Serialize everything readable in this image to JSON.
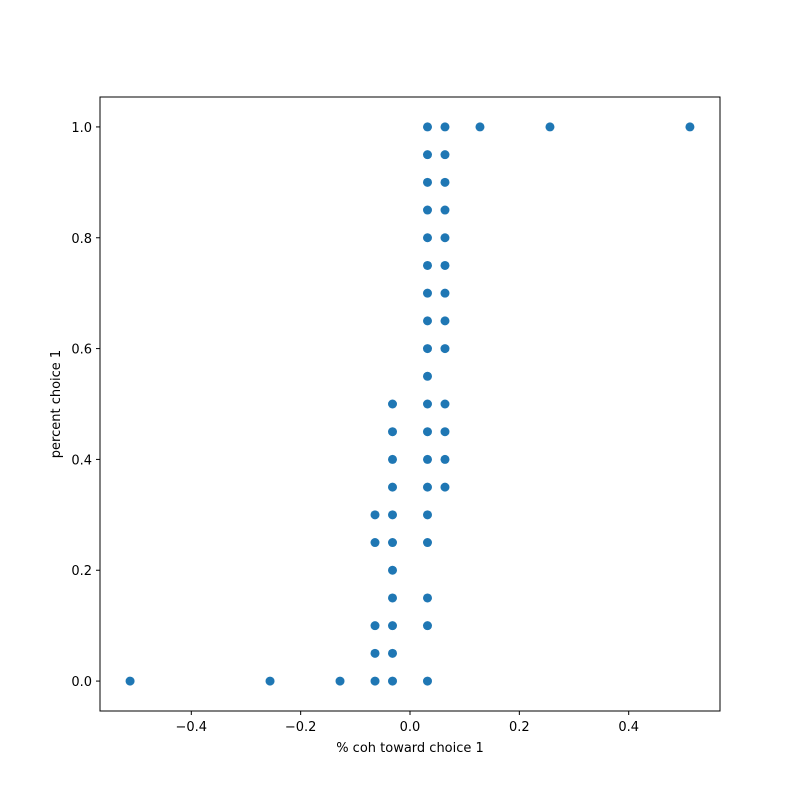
{
  "chart_data": {
    "type": "scatter",
    "xlabel": "% coh toward choice 1",
    "ylabel": "percent choice 1",
    "color": "#1f77b4",
    "x": [
      -0.512,
      -0.256,
      -0.128,
      -0.064,
      -0.064,
      -0.064,
      -0.064,
      -0.064,
      -0.032,
      -0.032,
      -0.032,
      -0.032,
      -0.032,
      -0.032,
      -0.032,
      -0.032,
      -0.032,
      -0.032,
      -0.032,
      0.032,
      0.032,
      0.032,
      0.032,
      0.032,
      0.032,
      0.032,
      0.032,
      0.032,
      0.032,
      0.032,
      0.032,
      0.032,
      0.032,
      0.032,
      0.032,
      0.032,
      0.032,
      0.032,
      0.064,
      0.064,
      0.064,
      0.064,
      0.064,
      0.064,
      0.064,
      0.064,
      0.064,
      0.064,
      0.064,
      0.064,
      0.064,
      0.128,
      0.256,
      0.512
    ],
    "y": [
      0,
      0,
      0,
      0,
      0.05,
      0.1,
      0.25,
      0.3,
      0,
      0.05,
      0.1,
      0.15,
      0.2,
      0.25,
      0.3,
      0.35,
      0.4,
      0.45,
      0.5,
      0,
      0.1,
      0.15,
      0.25,
      0.3,
      0.35,
      0.4,
      0.45,
      0.5,
      0.55,
      0.6,
      0.65,
      0.7,
      0.75,
      0.8,
      0.85,
      0.9,
      0.95,
      1,
      0.35,
      0.4,
      0.45,
      0.5,
      0.6,
      0.65,
      0.7,
      0.75,
      0.8,
      0.85,
      0.9,
      0.95,
      1,
      1,
      1,
      1
    ],
    "xlim": [
      -0.567,
      0.567
    ],
    "ylim": [
      -0.054,
      1.054
    ],
    "xticks": [
      {
        "value": -0.4,
        "label": "−0.4"
      },
      {
        "value": -0.2,
        "label": "−0.2"
      },
      {
        "value": 0,
        "label": "0.0"
      },
      0.2,
      0.4
    ],
    "yticks": [
      {
        "value": 0,
        "label": "0.0"
      },
      0.2,
      0.4,
      0.6,
      0.8,
      {
        "value": 1,
        "label": "1.0"
      }
    ],
    "grid": false
  }
}
